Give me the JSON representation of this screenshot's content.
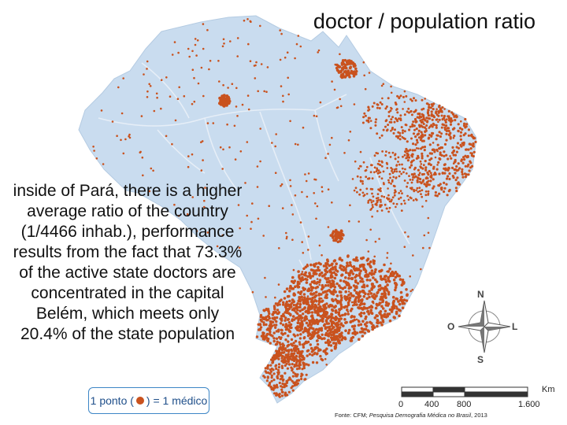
{
  "title": "doctor / population ratio",
  "annotation": [
    "inside of Pará, there is a higher",
    "average ratio of the country",
    "(1/4466 inhab.), performance",
    "results from the fact that 73.3%",
    "of the active state doctors are",
    "concentrated in the capital",
    "Belém, which meets only",
    "20.4% of the state population"
  ],
  "legend": {
    "prefix": "1 ponto (",
    "suffix": ") = 1 médico"
  },
  "scale": {
    "unit": "Km",
    "ticks": [
      "0",
      "400",
      "800",
      "1.600"
    ]
  },
  "compass": {
    "north": "N",
    "south": "S",
    "east": "L",
    "west": "O"
  },
  "source": {
    "prefix": "Fonte: CFM; ",
    "title": "Pesquisa Demografia Médica no Brasil",
    "year": ", 2013"
  },
  "colors": {
    "land": "#c9dcef",
    "dots": "#c9521e",
    "rivers": "#e6eef7",
    "legend_border": "#3d86c6"
  }
}
